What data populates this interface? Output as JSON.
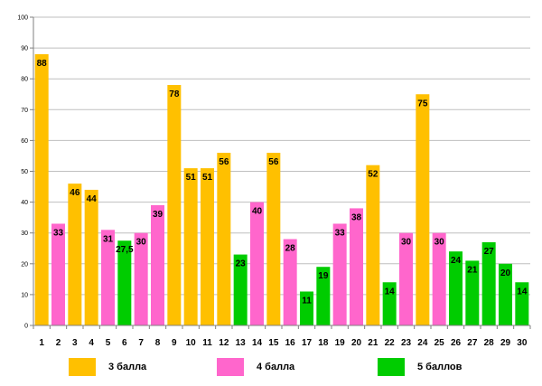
{
  "chart_data": {
    "type": "bar",
    "categories": [
      "1",
      "2",
      "3",
      "4",
      "5",
      "6",
      "7",
      "8",
      "9",
      "10",
      "11",
      "12",
      "13",
      "14",
      "15",
      "16",
      "17",
      "18",
      "19",
      "20",
      "21",
      "22",
      "23",
      "24",
      "25",
      "26",
      "27",
      "28",
      "29",
      "30"
    ],
    "values": [
      88,
      33,
      46,
      44,
      31,
      27.5,
      30,
      39,
      78,
      51,
      51,
      56,
      23,
      40,
      56,
      28,
      11,
      19,
      33,
      38,
      52,
      14,
      30,
      75,
      30,
      24,
      21,
      27,
      20,
      14
    ],
    "labels": [
      "88",
      "33",
      "46",
      "44",
      "31",
      "27,5",
      "30",
      "39",
      "78",
      "51",
      "51",
      "56",
      "23",
      "40",
      "56",
      "28",
      "11",
      "19",
      "33",
      "38",
      "52",
      "14",
      "30",
      "75",
      "30",
      "24",
      "21",
      "27",
      "20",
      "14"
    ],
    "groups": [
      "3",
      "4",
      "3",
      "3",
      "4",
      "5",
      "4",
      "4",
      "3",
      "3",
      "3",
      "3",
      "5",
      "4",
      "3",
      "4",
      "5",
      "5",
      "4",
      "4",
      "3",
      "5",
      "4",
      "3",
      "4",
      "5",
      "5",
      "5",
      "5",
      "5"
    ],
    "ylim": [
      0,
      100
    ],
    "yticks": [
      "0",
      "10",
      "20",
      "30",
      "40",
      "50",
      "60",
      "70",
      "80",
      "90",
      "100"
    ],
    "gridlines": true,
    "title": "",
    "xlabel": "",
    "ylabel": ""
  },
  "colors": {
    "3": "#ffc000",
    "4": "#ff66cc",
    "5": "#00cc00",
    "grid": "#bfbfbf",
    "axis": "#808080"
  },
  "legend": [
    {
      "group": "3",
      "label": "3 балла"
    },
    {
      "group": "4",
      "label": "4 балла"
    },
    {
      "group": "5",
      "label": "5 баллов"
    }
  ]
}
